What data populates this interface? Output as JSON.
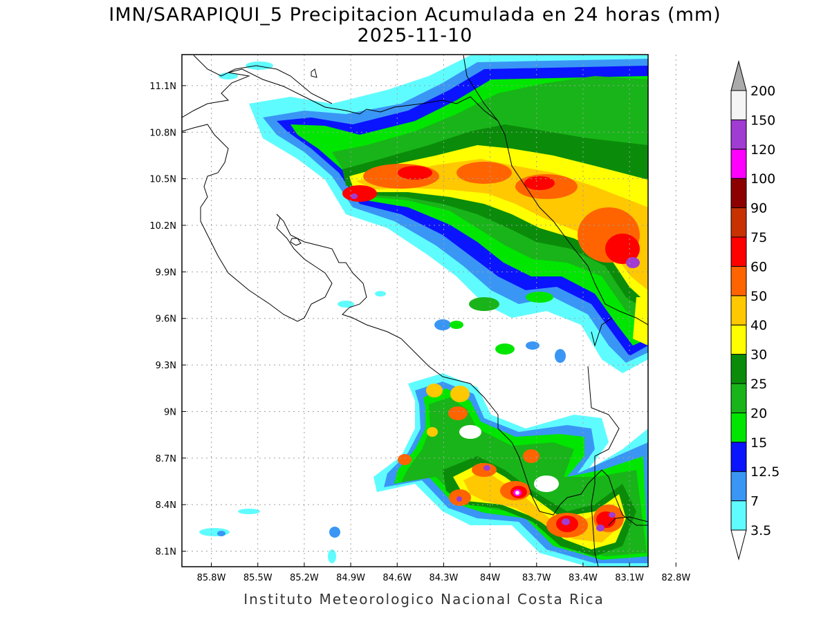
{
  "title": {
    "line1": "IMN/SARAPIQUI_5 Precipitacion Acumulada en 24 horas (mm)",
    "line2": "2025-11-10"
  },
  "footer": "Instituto Meteorologico Nacional Costa Rica",
  "map": {
    "lon_range": [
      -85.99,
      -82.98
    ],
    "lat_range": [
      8.0,
      11.3
    ],
    "lon_ticks": [
      "85.8W",
      "85.5W",
      "85.2W",
      "84.9W",
      "84.6W",
      "84.3W",
      "84W",
      "83.7W",
      "83.4W",
      "83.1W",
      "82.8W"
    ],
    "lon_tick_values": [
      -85.8,
      -85.5,
      -85.2,
      -84.9,
      -84.6,
      -84.3,
      -84.0,
      -83.7,
      -83.4,
      -83.1,
      -82.8
    ],
    "lat_ticks": [
      "11.1N",
      "10.8N",
      "10.5N",
      "10.2N",
      "9.9N",
      "9.6N",
      "9.3N",
      "9N",
      "8.7N",
      "8.4N",
      "8.1N"
    ],
    "lat_tick_values": [
      11.1,
      10.8,
      10.5,
      10.2,
      9.9,
      9.6,
      9.3,
      9.0,
      8.7,
      8.4,
      8.1
    ],
    "grid": true
  },
  "colorbar": {
    "labels": [
      "3.5",
      "7",
      "12.5",
      "15",
      "20",
      "25",
      "30",
      "40",
      "50",
      "60",
      "75",
      "90",
      "100",
      "120",
      "150",
      "200"
    ],
    "colors": [
      "#5ffcff",
      "#3a96f5",
      "#0a14ff",
      "#00e600",
      "#19b419",
      "#0a8c0a",
      "#ffff00",
      "#ffc800",
      "#ff6400",
      "#ff0000",
      "#c83200",
      "#8c0000",
      "#ff00ff",
      "#a03cd2",
      "#f5f5f5"
    ],
    "under_color": "#ffffff",
    "over_color": "#aaaaaa"
  }
}
